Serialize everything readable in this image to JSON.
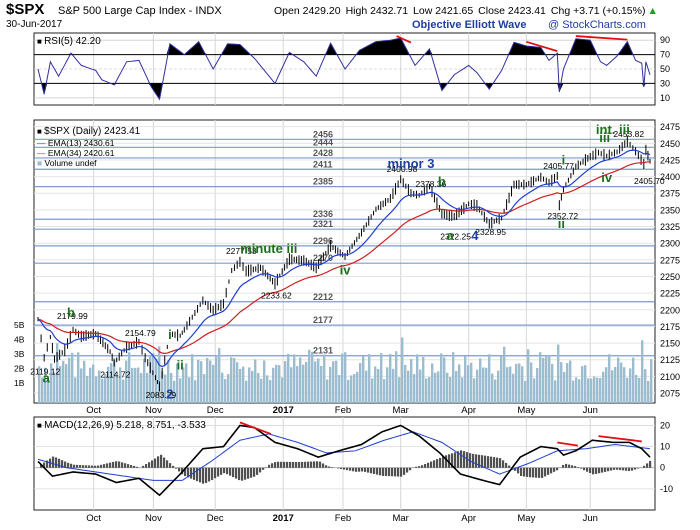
{
  "header": {
    "symbol": "$SPX",
    "name": "S&P 500 Large Cap Index",
    "exchange": "INDX",
    "date": "30-Jun-2017",
    "open": "Open 2429.20",
    "high": "High 2432.71",
    "low": "Low 2421.65",
    "close": "Close 2423.41",
    "chg": "Chg +3.71 (+0.15%)",
    "chg_arrow": "▲",
    "credit": "Objective Elliott Wave",
    "watermark": "@ StockCharts.com"
  },
  "colors": {
    "ema13": "#1f3fd1",
    "ema34": "#d02020",
    "volume": "#9cbcd0",
    "price_bar": "#000000",
    "rsi_line": "#3030a0",
    "macd": "#000000",
    "signal": "#1f3fd1",
    "hist": "#505050",
    "trendline": "#e01010",
    "label_green": "#1f6e1f",
    "label_blue": "#1f3fa0",
    "fib_line": "#7c9ccc"
  },
  "chart_data": [
    {
      "type": "line",
      "name": "price",
      "title": "$SPX (Daily) 2423.41",
      "legend": [
        {
          "label": "EMA(13) 2430.61",
          "color": "#1f3fd1"
        },
        {
          "label": "EMA(34) 2420.61",
          "color": "#d02020"
        },
        {
          "label": "Volume undef",
          "color": "#9cbcd0"
        }
      ],
      "x_ticks": [
        "Oct",
        "Nov",
        "Dec",
        "2017",
        "Feb",
        "Mar",
        "Apr",
        "May",
        "Jun"
      ],
      "y_ticks": [
        2075,
        2100,
        2125,
        2150,
        2175,
        2200,
        2225,
        2250,
        2275,
        2300,
        2325,
        2350,
        2375,
        2400,
        2425,
        2450,
        2475
      ],
      "ylim": [
        2060,
        2485
      ],
      "volume_ticks": [
        "1B",
        "2B",
        "3B",
        "4B",
        "5B"
      ],
      "fib_levels": [
        {
          "value": 2456,
          "label": "2456"
        },
        {
          "value": 2444,
          "label": "2444"
        },
        {
          "value": 2428,
          "label": "2428"
        },
        {
          "value": 2411,
          "label": "2411"
        },
        {
          "value": 2385,
          "label": "2385"
        },
        {
          "value": 2336,
          "label": "2336"
        },
        {
          "value": 2321,
          "label": "2321"
        },
        {
          "value": 2296,
          "label": "2296"
        },
        {
          "value": 2270,
          "label": "2270"
        },
        {
          "value": 2212,
          "label": "2212"
        },
        {
          "value": 2177,
          "label": "2177"
        },
        {
          "value": 2131,
          "label": "2131"
        }
      ],
      "price_points": [
        {
          "x": "2016-09-06",
          "y": 2186
        },
        {
          "x": "2016-09-09",
          "y": 2128
        },
        {
          "x": "2016-09-12",
          "y": 2159
        },
        {
          "x": "2016-09-14",
          "y": 2126
        },
        {
          "x": "2016-09-19",
          "y": 2139
        },
        {
          "x": "2016-09-23",
          "y": 2170
        },
        {
          "x": "2016-09-27",
          "y": 2160
        },
        {
          "x": "2016-10-04",
          "y": 2164
        },
        {
          "x": "2016-10-11",
          "y": 2137
        },
        {
          "x": "2016-10-13",
          "y": 2120
        },
        {
          "x": "2016-10-19",
          "y": 2144
        },
        {
          "x": "2016-10-25",
          "y": 2152
        },
        {
          "x": "2016-10-28",
          "y": 2128
        },
        {
          "x": "2016-11-02",
          "y": 2098
        },
        {
          "x": "2016-11-04",
          "y": 2085
        },
        {
          "x": "2016-11-09",
          "y": 2164
        },
        {
          "x": "2016-11-14",
          "y": 2161
        },
        {
          "x": "2016-11-16",
          "y": 2170
        },
        {
          "x": "2016-11-25",
          "y": 2214
        },
        {
          "x": "2016-11-30",
          "y": 2199
        },
        {
          "x": "2016-12-05",
          "y": 2209
        },
        {
          "x": "2016-12-09",
          "y": 2259
        },
        {
          "x": "2016-12-13",
          "y": 2272
        },
        {
          "x": "2016-12-16",
          "y": 2258
        },
        {
          "x": "2016-12-23",
          "y": 2263
        },
        {
          "x": "2016-12-30",
          "y": 2239
        },
        {
          "x": "2017-01-06",
          "y": 2276
        },
        {
          "x": "2017-01-13",
          "y": 2274
        },
        {
          "x": "2017-01-19",
          "y": 2263
        },
        {
          "x": "2017-01-26",
          "y": 2296
        },
        {
          "x": "2017-02-02",
          "y": 2280
        },
        {
          "x": "2017-02-10",
          "y": 2316
        },
        {
          "x": "2017-02-17",
          "y": 2351
        },
        {
          "x": "2017-02-24",
          "y": 2367
        },
        {
          "x": "2017-03-01",
          "y": 2396
        },
        {
          "x": "2017-03-06",
          "y": 2375
        },
        {
          "x": "2017-03-10",
          "y": 2372
        },
        {
          "x": "2017-03-15",
          "y": 2385
        },
        {
          "x": "2017-03-21",
          "y": 2344
        },
        {
          "x": "2017-03-27",
          "y": 2340
        },
        {
          "x": "2017-04-03",
          "y": 2359
        },
        {
          "x": "2017-04-07",
          "y": 2356
        },
        {
          "x": "2017-04-13",
          "y": 2329
        },
        {
          "x": "2017-04-19",
          "y": 2338
        },
        {
          "x": "2017-04-25",
          "y": 2388
        },
        {
          "x": "2017-05-01",
          "y": 2388
        },
        {
          "x": "2017-05-08",
          "y": 2399
        },
        {
          "x": "2017-05-12",
          "y": 2391
        },
        {
          "x": "2017-05-16",
          "y": 2401
        },
        {
          "x": "2017-05-17",
          "y": 2357
        },
        {
          "x": "2017-05-19",
          "y": 2381
        },
        {
          "x": "2017-05-25",
          "y": 2415
        },
        {
          "x": "2017-06-01",
          "y": 2430
        },
        {
          "x": "2017-06-05",
          "y": 2436
        },
        {
          "x": "2017-06-09",
          "y": 2431
        },
        {
          "x": "2017-06-14",
          "y": 2437
        },
        {
          "x": "2017-06-19",
          "y": 2453
        },
        {
          "x": "2017-06-23",
          "y": 2438
        },
        {
          "x": "2017-06-27",
          "y": 2419
        },
        {
          "x": "2017-06-28",
          "y": 2440
        },
        {
          "x": "2017-06-30",
          "y": 2423
        }
      ],
      "price_labels": [
        {
          "x": "2016-09-09",
          "y": 2119.12,
          "text": "2119.12"
        },
        {
          "x": "2016-09-22",
          "y": 2179.99,
          "text": "2179.99"
        },
        {
          "x": "2016-10-13",
          "y": 2114.72,
          "text": "2114.72"
        },
        {
          "x": "2016-10-25",
          "y": 2154.79,
          "text": "2154.79"
        },
        {
          "x": "2016-11-04",
          "y": 2083.79,
          "text": "2083.79"
        },
        {
          "x": "2016-12-13",
          "y": 2277.53,
          "text": "2277.53"
        },
        {
          "x": "2016-12-30",
          "y": 2233.62,
          "text": "2233.62"
        },
        {
          "x": "2017-03-01",
          "y": 2400.98,
          "text": "2400.98"
        },
        {
          "x": "2017-03-15",
          "y": 2378.36,
          "text": "2378.36"
        },
        {
          "x": "2017-03-27",
          "y": 2322.25,
          "text": "2322.25"
        },
        {
          "x": "2017-04-13",
          "y": 2328.95,
          "text": "2328.95"
        },
        {
          "x": "2017-05-16",
          "y": 2405.77,
          "text": "2405.77"
        },
        {
          "x": "2017-05-18",
          "y": 2352.72,
          "text": "2352.72"
        },
        {
          "x": "2017-06-19",
          "y": 2453.82,
          "text": "2453.82"
        },
        {
          "x": "2017-06-29",
          "y": 2405.7,
          "text": "2405.70"
        }
      ],
      "wave_labels": [
        {
          "x": "2016-09-10",
          "y": 2091,
          "text": "a",
          "color": "green"
        },
        {
          "x": "2016-09-22",
          "y": 2189,
          "text": "b",
          "color": "green"
        },
        {
          "x": "2016-11-09",
          "y": 2156,
          "text": "i",
          "color": "green"
        },
        {
          "x": "2016-11-14",
          "y": 2110,
          "text": "ii",
          "color": "green"
        },
        {
          "x": "2016-11-09",
          "y": 2067,
          "text": "2",
          "color": "blue"
        },
        {
          "x": "2016-12-27",
          "y": 2285,
          "text": "minute iii",
          "color": "green"
        },
        {
          "x": "2017-02-02",
          "y": 2253,
          "text": "iv",
          "color": "green"
        },
        {
          "x": "2017-03-06",
          "y": 2413,
          "text": "minor 3",
          "color": "blue"
        },
        {
          "x": "2017-03-21",
          "y": 2386,
          "text": "b",
          "color": "green"
        },
        {
          "x": "2017-03-25",
          "y": 2305,
          "text": "a",
          "color": "green"
        },
        {
          "x": "2017-04-06",
          "y": 2305,
          "text": "4",
          "color": "blue"
        },
        {
          "x": "2017-05-19",
          "y": 2418,
          "text": "i",
          "color": "green"
        },
        {
          "x": "2017-05-18",
          "y": 2323,
          "text": "ii",
          "color": "green"
        },
        {
          "x": "2017-06-08",
          "y": 2452,
          "text": "iii",
          "color": "green"
        },
        {
          "x": "2017-06-12",
          "y": 2464,
          "text": "int. iii",
          "color": "green"
        },
        {
          "x": "2017-06-09",
          "y": 2392,
          "text": "iv",
          "color": "green"
        }
      ]
    },
    {
      "type": "line",
      "name": "rsi",
      "title": "RSI(5) 42.20",
      "ylim": [
        0,
        100
      ],
      "y_ticks": [
        10,
        30,
        50,
        70,
        90
      ],
      "points": [
        {
          "x": "2016-09-06",
          "y": 50
        },
        {
          "x": "2016-09-09",
          "y": 15
        },
        {
          "x": "2016-09-12",
          "y": 60
        },
        {
          "x": "2016-09-16",
          "y": 40
        },
        {
          "x": "2016-09-22",
          "y": 72
        },
        {
          "x": "2016-09-27",
          "y": 55
        },
        {
          "x": "2016-10-04",
          "y": 48
        },
        {
          "x": "2016-10-07",
          "y": 35
        },
        {
          "x": "2016-10-13",
          "y": 28
        },
        {
          "x": "2016-10-19",
          "y": 60
        },
        {
          "x": "2016-10-25",
          "y": 62
        },
        {
          "x": "2016-10-31",
          "y": 25
        },
        {
          "x": "2016-11-04",
          "y": 8
        },
        {
          "x": "2016-11-09",
          "y": 85
        },
        {
          "x": "2016-11-16",
          "y": 70
        },
        {
          "x": "2016-11-23",
          "y": 88
        },
        {
          "x": "2016-11-30",
          "y": 50
        },
        {
          "x": "2016-12-07",
          "y": 85
        },
        {
          "x": "2016-12-13",
          "y": 84
        },
        {
          "x": "2016-12-20",
          "y": 65
        },
        {
          "x": "2016-12-30",
          "y": 30
        },
        {
          "x": "2017-01-06",
          "y": 73
        },
        {
          "x": "2017-01-13",
          "y": 60
        },
        {
          "x": "2017-01-19",
          "y": 40
        },
        {
          "x": "2017-01-26",
          "y": 86
        },
        {
          "x": "2017-02-02",
          "y": 50
        },
        {
          "x": "2017-02-09",
          "y": 76
        },
        {
          "x": "2017-02-17",
          "y": 88
        },
        {
          "x": "2017-02-24",
          "y": 90
        },
        {
          "x": "2017-03-01",
          "y": 93
        },
        {
          "x": "2017-03-08",
          "y": 55
        },
        {
          "x": "2017-03-15",
          "y": 78
        },
        {
          "x": "2017-03-21",
          "y": 20
        },
        {
          "x": "2017-03-27",
          "y": 42
        },
        {
          "x": "2017-04-03",
          "y": 55
        },
        {
          "x": "2017-04-07",
          "y": 45
        },
        {
          "x": "2017-04-13",
          "y": 22
        },
        {
          "x": "2017-04-19",
          "y": 48
        },
        {
          "x": "2017-04-25",
          "y": 87
        },
        {
          "x": "2017-05-01",
          "y": 82
        },
        {
          "x": "2017-05-08",
          "y": 80
        },
        {
          "x": "2017-05-12",
          "y": 62
        },
        {
          "x": "2017-05-16",
          "y": 72
        },
        {
          "x": "2017-05-17",
          "y": 18
        },
        {
          "x": "2017-05-19",
          "y": 50
        },
        {
          "x": "2017-05-25",
          "y": 92
        },
        {
          "x": "2017-06-01",
          "y": 90
        },
        {
          "x": "2017-06-06",
          "y": 60
        },
        {
          "x": "2017-06-09",
          "y": 55
        },
        {
          "x": "2017-06-14",
          "y": 68
        },
        {
          "x": "2017-06-19",
          "y": 88
        },
        {
          "x": "2017-06-23",
          "y": 62
        },
        {
          "x": "2017-06-26",
          "y": 58
        },
        {
          "x": "2017-06-27",
          "y": 25
        },
        {
          "x": "2017-06-28",
          "y": 60
        },
        {
          "x": "2017-06-30",
          "y": 42
        }
      ]
    },
    {
      "type": "line",
      "name": "macd",
      "title": "MACD(12,26,9) 5.218, 8.751, -3.533",
      "ylim": [
        -20,
        24
      ],
      "y_ticks": [
        -10,
        0,
        10,
        20
      ],
      "x_ticks": [
        "Oct",
        "Nov",
        "Dec",
        "2017",
        "Feb",
        "Mar",
        "Apr",
        "May",
        "Jun"
      ],
      "macd_points": [
        {
          "x": "2016-09-06",
          "y": 3
        },
        {
          "x": "2016-09-13",
          "y": -4
        },
        {
          "x": "2016-09-23",
          "y": -2
        },
        {
          "x": "2016-10-04",
          "y": -3
        },
        {
          "x": "2016-10-14",
          "y": -7
        },
        {
          "x": "2016-10-25",
          "y": -5
        },
        {
          "x": "2016-11-04",
          "y": -13
        },
        {
          "x": "2016-11-15",
          "y": -2
        },
        {
          "x": "2016-11-25",
          "y": 9
        },
        {
          "x": "2016-12-05",
          "y": 10
        },
        {
          "x": "2016-12-13",
          "y": 20
        },
        {
          "x": "2016-12-20",
          "y": 19
        },
        {
          "x": "2016-12-30",
          "y": 12
        },
        {
          "x": "2017-01-10",
          "y": 9
        },
        {
          "x": "2017-01-20",
          "y": 5
        },
        {
          "x": "2017-01-30",
          "y": 8
        },
        {
          "x": "2017-02-10",
          "y": 11
        },
        {
          "x": "2017-02-20",
          "y": 17
        },
        {
          "x": "2017-03-01",
          "y": 20
        },
        {
          "x": "2017-03-10",
          "y": 15
        },
        {
          "x": "2017-03-20",
          "y": 7
        },
        {
          "x": "2017-03-30",
          "y": -3
        },
        {
          "x": "2017-04-10",
          "y": -6
        },
        {
          "x": "2017-04-18",
          "y": -8
        },
        {
          "x": "2017-04-28",
          "y": 5
        },
        {
          "x": "2017-05-08",
          "y": 10
        },
        {
          "x": "2017-05-16",
          "y": 9
        },
        {
          "x": "2017-05-19",
          "y": 6
        },
        {
          "x": "2017-05-25",
          "y": 8
        },
        {
          "x": "2017-06-02",
          "y": 13
        },
        {
          "x": "2017-06-12",
          "y": 12
        },
        {
          "x": "2017-06-20",
          "y": 12
        },
        {
          "x": "2017-06-26",
          "y": 9
        },
        {
          "x": "2017-06-30",
          "y": 5
        }
      ],
      "signal_points": [
        {
          "x": "2016-09-06",
          "y": 4
        },
        {
          "x": "2016-09-20",
          "y": 0
        },
        {
          "x": "2016-10-04",
          "y": -2
        },
        {
          "x": "2016-10-18",
          "y": -4
        },
        {
          "x": "2016-11-01",
          "y": -6
        },
        {
          "x": "2016-11-15",
          "y": -6
        },
        {
          "x": "2016-11-29",
          "y": 3
        },
        {
          "x": "2016-12-13",
          "y": 13
        },
        {
          "x": "2016-12-27",
          "y": 16
        },
        {
          "x": "2017-01-10",
          "y": 12
        },
        {
          "x": "2017-01-24",
          "y": 7
        },
        {
          "x": "2017-02-07",
          "y": 8
        },
        {
          "x": "2017-02-21",
          "y": 13
        },
        {
          "x": "2017-03-07",
          "y": 17
        },
        {
          "x": "2017-03-21",
          "y": 12
        },
        {
          "x": "2017-04-04",
          "y": 3
        },
        {
          "x": "2017-04-18",
          "y": -3
        },
        {
          "x": "2017-05-02",
          "y": 2
        },
        {
          "x": "2017-05-16",
          "y": 8
        },
        {
          "x": "2017-05-30",
          "y": 9
        },
        {
          "x": "2017-06-13",
          "y": 11
        },
        {
          "x": "2017-06-30",
          "y": 9
        }
      ]
    }
  ]
}
